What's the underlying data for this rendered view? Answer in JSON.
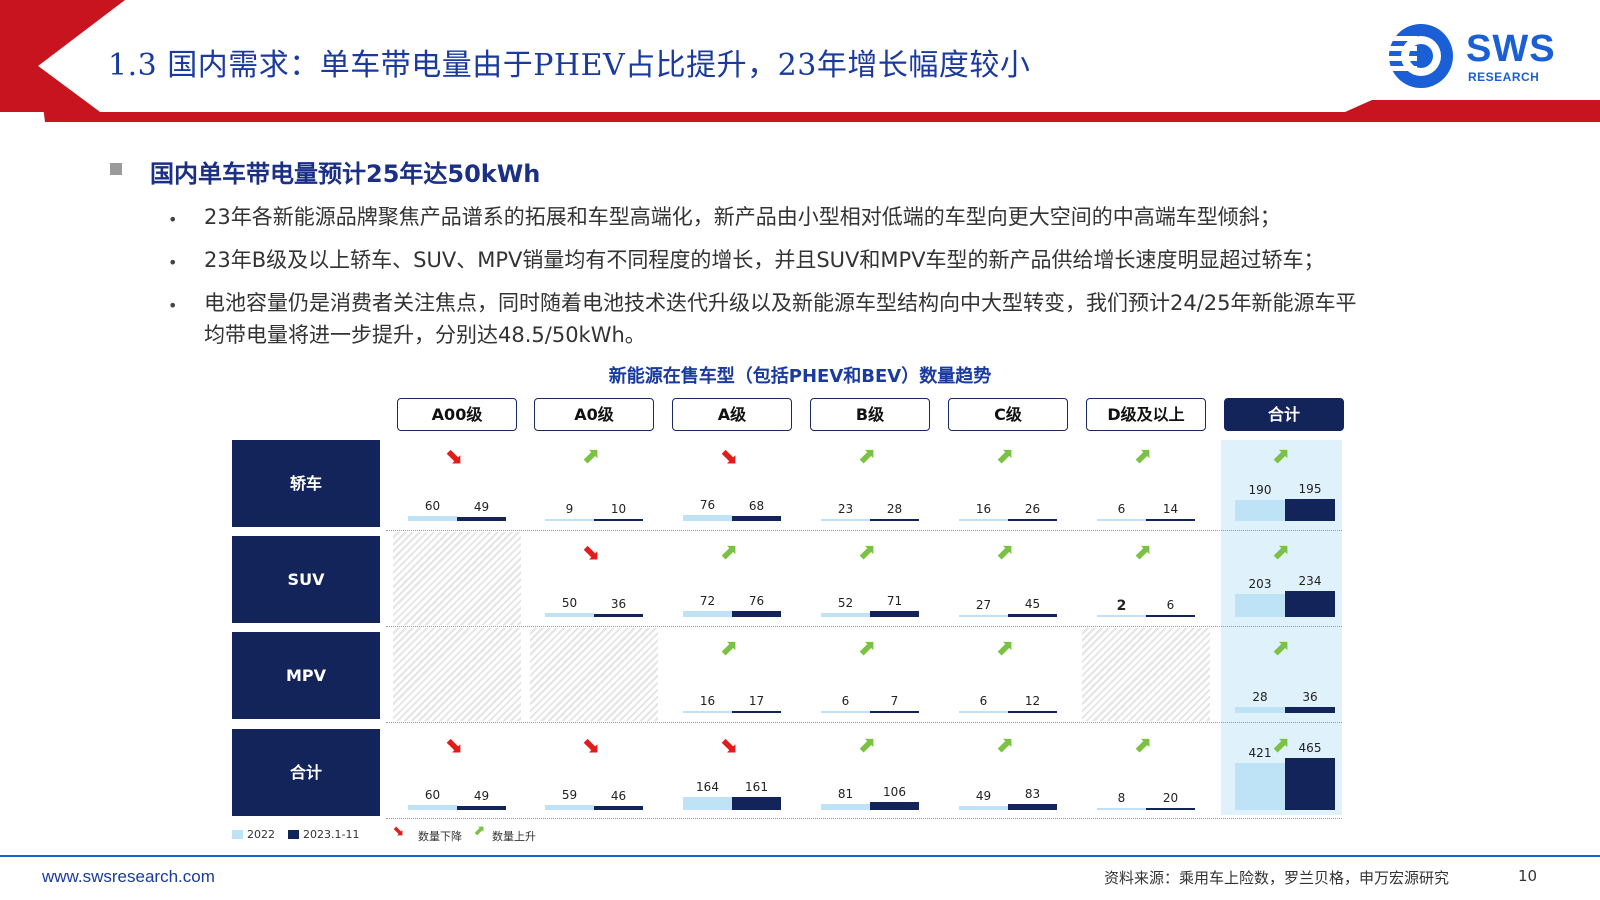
{
  "header": {
    "title": "1.3 国内需求：单车带电量由于PHEV占比提升，23年增长幅度较小",
    "logo_main": "SWS",
    "logo_sub": "RESEARCH"
  },
  "section": {
    "heading": "国内单车带电量预计25年达50kWh",
    "bullets": [
      "23年各新能源品牌聚焦产品谱系的拓展和车型高端化，新产品由小型相对低端的车型向更大空间的中高端车型倾斜；",
      "23年B级及以上轿车、SUV、MPV销量均有不同程度的增长，并且SUV和MPV车型的新产品供给增长速度明显超过轿车；",
      "电池容量仍是消费者关注焦点，同时随着电池技术迭代升级以及新能源车型结构向中大型转变，我们预计24/25年新能源车平",
      "均带电量将进一步提升，分别达48.5/50kWh。"
    ]
  },
  "chart_data": {
    "type": "table",
    "title": "新能源在售车型（包括PHEV和BEV）数量趋势",
    "columns": [
      "A00级",
      "A0级",
      "A级",
      "B级",
      "C级",
      "D级及以上",
      "合计"
    ],
    "rows": [
      "轿车",
      "SUV",
      "MPV",
      "合计"
    ],
    "series": [
      "2022",
      "2023.1-11"
    ],
    "cells": [
      [
        {
          "v2022": 60,
          "v2023": 49,
          "trend": "down"
        },
        {
          "v2022": 9,
          "v2023": 10,
          "trend": "up"
        },
        {
          "v2022": 76,
          "v2023": 68,
          "trend": "down"
        },
        {
          "v2022": 23,
          "v2023": 28,
          "trend": "up"
        },
        {
          "v2022": 16,
          "v2023": 26,
          "trend": "up"
        },
        {
          "v2022": 6,
          "v2023": 14,
          "trend": "up"
        },
        {
          "v2022": 190,
          "v2023": 195,
          "trend": "up"
        }
      ],
      [
        null,
        {
          "v2022": 50,
          "v2023": 36,
          "trend": "down"
        },
        {
          "v2022": 72,
          "v2023": 76,
          "trend": "up"
        },
        {
          "v2022": 52,
          "v2023": 71,
          "trend": "up"
        },
        {
          "v2022": 27,
          "v2023": 45,
          "trend": "up"
        },
        {
          "v2022": 2,
          "v2023": 6,
          "trend": "up"
        },
        {
          "v2022": 203,
          "v2023": 234,
          "trend": "up"
        }
      ],
      [
        null,
        null,
        {
          "v2022": 16,
          "v2023": 17,
          "trend": "up"
        },
        {
          "v2022": 6,
          "v2023": 7,
          "trend": "up"
        },
        {
          "v2022": 6,
          "v2023": 12,
          "trend": "up"
        },
        null,
        {
          "v2022": 28,
          "v2023": 36,
          "trend": "up"
        }
      ],
      [
        {
          "v2022": 60,
          "v2023": 49,
          "trend": "down"
        },
        {
          "v2022": 59,
          "v2023": 46,
          "trend": "down"
        },
        {
          "v2022": 164,
          "v2023": 161,
          "trend": "down"
        },
        {
          "v2022": 81,
          "v2023": 106,
          "trend": "up"
        },
        {
          "v2022": 49,
          "v2023": 83,
          "trend": "up"
        },
        {
          "v2022": 8,
          "v2023": 20,
          "trend": "up"
        },
        {
          "v2022": 421,
          "v2023": 465,
          "trend": "up"
        }
      ]
    ],
    "legend": {
      "items": [
        "2022",
        "2023.1-11",
        "数量下降",
        "数量上升"
      ]
    },
    "colors": {
      "v2022": "#bfe3f6",
      "v2023": "#13245a",
      "up": "#7cc242",
      "down": "#e31b1b"
    }
  },
  "footer": {
    "url": "www.swsresearch.com",
    "source": "资料来源：乘用车上险数，罗兰贝格，申万宏源研究",
    "page": "10"
  }
}
